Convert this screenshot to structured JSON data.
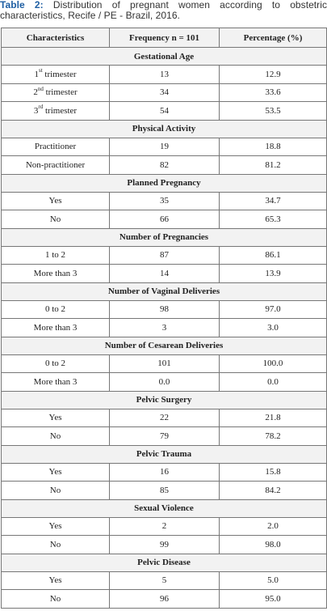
{
  "caption": {
    "label": "Table 2:",
    "text": "Distribution of pregnant women according to obstetric characteristics, Recife / PE - Brazil, 2016."
  },
  "table": {
    "headers": [
      "Characteristics",
      "Frequency n = 101",
      "Percentage (%)"
    ],
    "sections": [
      {
        "title": "Gestational Age",
        "rows": [
          {
            "label": "1",
            "sup": "st",
            "suffix": " trimester",
            "freq": "13",
            "pct": "12.9"
          },
          {
            "label": "2",
            "sup": "nd",
            "suffix": " trimester",
            "freq": "34",
            "pct": "33.6"
          },
          {
            "label": "3",
            "sup": "rd",
            "suffix": " trimester",
            "freq": "54",
            "pct": "53.5"
          }
        ]
      },
      {
        "title": "Physical Activity",
        "rows": [
          {
            "label": "Practitioner",
            "freq": "19",
            "pct": "18.8"
          },
          {
            "label": "Non-practitioner",
            "freq": "82",
            "pct": "81.2"
          }
        ]
      },
      {
        "title": "Planned Pregnancy",
        "rows": [
          {
            "label": "Yes",
            "freq": "35",
            "pct": "34.7"
          },
          {
            "label": "No",
            "freq": "66",
            "pct": "65.3"
          }
        ]
      },
      {
        "title": "Number of Pregnancies",
        "rows": [
          {
            "label": "1 to 2",
            "freq": "87",
            "pct": "86.1"
          },
          {
            "label": "More than 3",
            "freq": "14",
            "pct": "13.9"
          }
        ]
      },
      {
        "title": "Number of Vaginal Deliveries",
        "rows": [
          {
            "label": "0 to 2",
            "freq": "98",
            "pct": "97.0"
          },
          {
            "label": "More than 3",
            "freq": "3",
            "pct": "3.0"
          }
        ]
      },
      {
        "title": "Number of Cesarean Deliveries",
        "rows": [
          {
            "label": "0 to 2",
            "freq": "101",
            "pct": "100.0"
          },
          {
            "label": "More than 3",
            "freq": "0.0",
            "pct": "0.0"
          }
        ]
      },
      {
        "title": "Pelvic Surgery",
        "rows": [
          {
            "label": "Yes",
            "freq": "22",
            "pct": "21.8"
          },
          {
            "label": "No",
            "freq": "79",
            "pct": "78.2"
          }
        ]
      },
      {
        "title": "Pelvic Trauma",
        "rows": [
          {
            "label": "Yes",
            "freq": "16",
            "pct": "15.8"
          },
          {
            "label": "No",
            "freq": "85",
            "pct": "84.2"
          }
        ]
      },
      {
        "title": "Sexual Violence",
        "rows": [
          {
            "label": "Yes",
            "freq": "2",
            "pct": "2.0"
          },
          {
            "label": "No",
            "freq": "99",
            "pct": "98.0"
          }
        ]
      },
      {
        "title": "Pelvic Disease",
        "rows": [
          {
            "label": "Yes",
            "freq": "5",
            "pct": "5.0"
          },
          {
            "label": "No",
            "freq": "96",
            "pct": "95.0"
          }
        ]
      }
    ]
  }
}
